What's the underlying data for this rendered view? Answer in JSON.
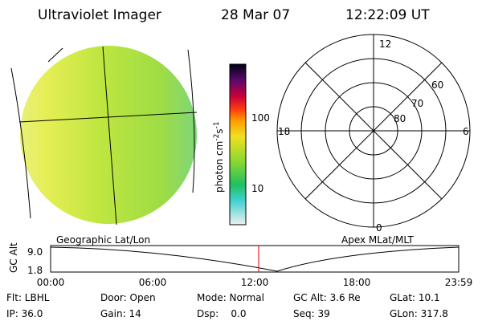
{
  "header": {
    "title": "Ultraviolet Imager",
    "date": "28 Mar 07",
    "time": "12:22:09 UT"
  },
  "image": {
    "label": "Geographic Lat/Lon"
  },
  "colorbar": {
    "unit": [
      "photon cm",
      "-2",
      "s",
      "-1"
    ],
    "ticks": [
      "100",
      "10"
    ]
  },
  "polar": {
    "label": "Apex MLat/MLT",
    "mlt": [
      "12",
      "18",
      "6",
      "0"
    ],
    "lat": [
      "60",
      "70",
      "80"
    ]
  },
  "altitude": {
    "axis_label": "GC Alt",
    "yticks": [
      "9.0",
      "1.8"
    ],
    "xticks": [
      "00:00",
      "06:00",
      "12:00",
      "18:00",
      "23:59"
    ]
  },
  "status": {
    "rows": [
      [
        "Flt: LBHL",
        "Door: Open",
        "Mode: Normal",
        "GC Alt: 3.6 Re",
        "GLat: 10.1"
      ],
      [
        "IP: 36.0",
        "Gain: 14",
        "Dsp:    0.0",
        "Seq: 39",
        "GLon: 317.8"
      ]
    ]
  }
}
